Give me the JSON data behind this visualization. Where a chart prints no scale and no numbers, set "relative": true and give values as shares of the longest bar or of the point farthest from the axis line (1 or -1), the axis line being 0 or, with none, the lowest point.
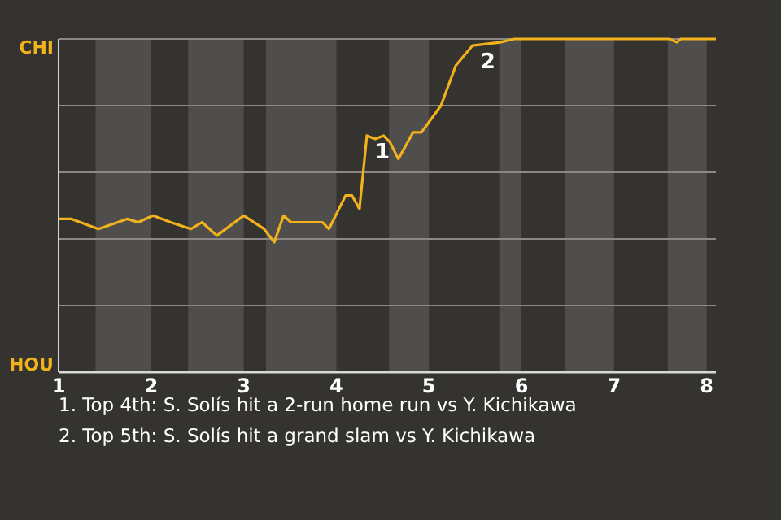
{
  "chart_data": {
    "type": "line",
    "relative": true,
    "xlim": [
      1,
      8.1
    ],
    "xticks": [
      1,
      2,
      3,
      4,
      5,
      6,
      7,
      8
    ],
    "marker": "none",
    "line_style": "solid",
    "series": [
      {
        "color": "#f2b21c",
        "x": [
          1,
          1.14,
          1.43,
          1.74,
          1.86,
          2.02,
          2.21,
          2.43,
          2.55,
          2.71,
          3,
          3.22,
          3.33,
          3.43,
          3.51,
          3.85,
          3.92,
          4.1,
          4.17,
          4.25,
          4.33,
          4.42,
          4.51,
          4.58,
          4.67,
          4.83,
          4.92,
          5.13,
          5.29,
          5.47,
          5.77,
          5.92,
          6.97,
          7.6,
          7.68,
          7.72,
          8.1
        ],
        "values": [
          0.46,
          0.46,
          0.43,
          0.46,
          0.45,
          0.47,
          0.45,
          0.43,
          0.45,
          0.41,
          0.47,
          0.43,
          0.39,
          0.47,
          0.45,
          0.45,
          0.43,
          0.53,
          0.53,
          0.49,
          0.71,
          0.7,
          0.71,
          0.69,
          0.64,
          0.72,
          0.72,
          0.8,
          0.92,
          0.98,
          0.99,
          1,
          1,
          1,
          0.99,
          1,
          1
        ]
      }
    ],
    "grid": "y",
    "bands": [
      {
        "axis": "x",
        "from": 1.4,
        "to": 2,
        "color": "#4f4e4c"
      },
      {
        "axis": "x",
        "from": 2.4,
        "to": 3,
        "color": "#4f4e4c"
      },
      {
        "axis": "x",
        "from": 3.24,
        "to": 4,
        "color": "#4f4e4c"
      },
      {
        "axis": "x",
        "from": 4.57,
        "to": 5,
        "color": "#4f4e4c"
      },
      {
        "axis": "x",
        "from": 5.76,
        "to": 6,
        "color": "#4f4e4c"
      },
      {
        "axis": "x",
        "from": 6.47,
        "to": 7,
        "color": "#4f4e4c"
      },
      {
        "axis": "x",
        "from": 7.58,
        "to": 8,
        "color": "#4f4e4c"
      }
    ],
    "annotations": [
      "CHI",
      "HOU",
      {
        "text": "1",
        "x": 4.33,
        "y": 0.71
      },
      {
        "text": "2",
        "x": 5.47,
        "y": 0.98
      },
      "1. Top 4th: S. Solís hit a 2-run home run vs Y. Kichikawa",
      "2. Top 5th: S. Solís hit a grand slam vs Y. Kichikawa"
    ]
  }
}
